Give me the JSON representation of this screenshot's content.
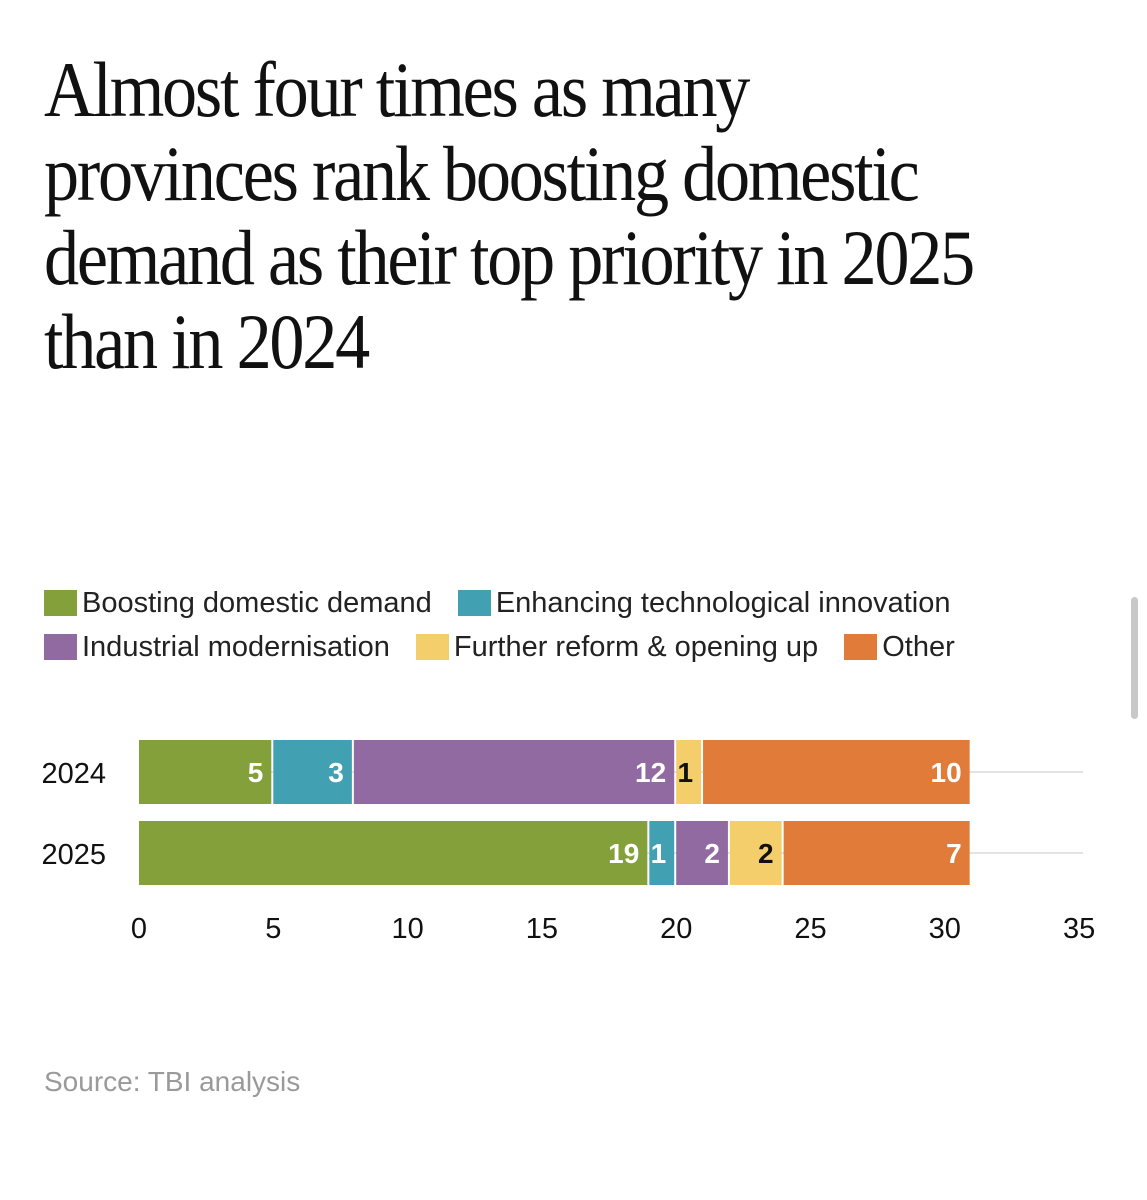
{
  "title": "Almost four times as many provinces rank boosting domestic demand as their top priority in 2025 than in 2024",
  "source": "Source: TBI analysis",
  "chart_data": {
    "type": "bar",
    "orientation": "horizontal",
    "stacked": true,
    "categories": [
      "2024",
      "2025"
    ],
    "series": [
      {
        "name": "Boosting domestic demand",
        "color": "#84a03a",
        "label_color": "#ffffff",
        "values": [
          5,
          19
        ]
      },
      {
        "name": "Enhancing technological innovation",
        "color": "#42a0b3",
        "label_color": "#ffffff",
        "values": [
          3,
          1
        ]
      },
      {
        "name": "Industrial modernisation",
        "color": "#906aa0",
        "label_color": "#ffffff",
        "values": [
          12,
          2
        ]
      },
      {
        "name": "Further reform & opening up",
        "color": "#f3ce6a",
        "label_color": "#111111",
        "values": [
          1,
          2
        ]
      },
      {
        "name": "Other",
        "color": "#e07b3a",
        "label_color": "#ffffff",
        "values": [
          10,
          7
        ]
      }
    ],
    "xlim": [
      0,
      35
    ],
    "xticks": [
      "0",
      "5",
      "10",
      "15",
      "20",
      "25",
      "30",
      "35"
    ],
    "gridlines": true,
    "legend_position": "top"
  }
}
